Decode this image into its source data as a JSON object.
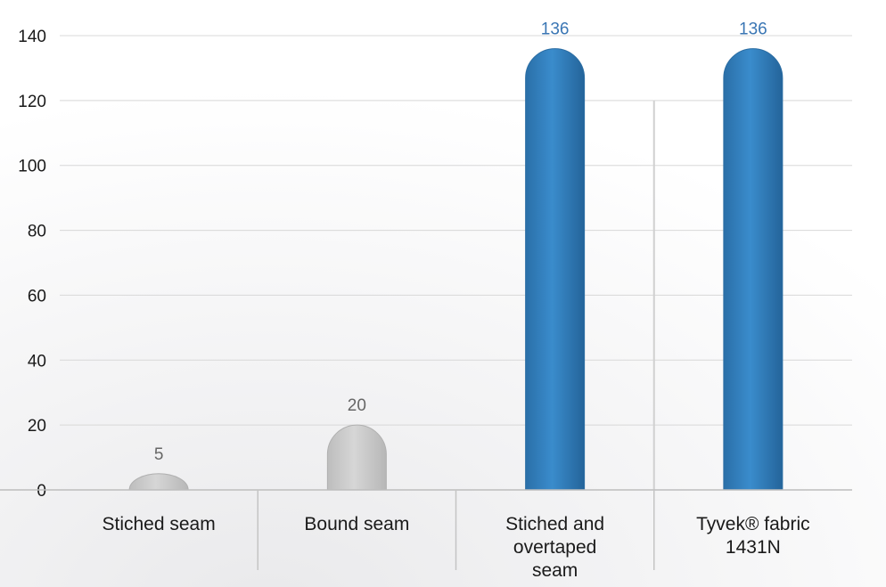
{
  "chart_data": {
    "type": "bar",
    "categories": [
      [
        "Stiched seam"
      ],
      [
        "Bound seam"
      ],
      [
        "Stiched and",
        "overtaped",
        "seam"
      ],
      [
        "Tyvek® fabric",
        "1431N"
      ]
    ],
    "values": [
      5,
      20,
      136,
      136
    ],
    "data_labels": [
      "5",
      "20",
      "136",
      "136"
    ],
    "yticks": [
      "0",
      "20",
      "40",
      "60",
      "80",
      "100",
      "120",
      "140"
    ],
    "ylim": [
      0,
      140
    ],
    "grid": true,
    "title": "",
    "xlabel": "",
    "ylabel": "",
    "colors": {
      "gray_bar": "#c9c9c9",
      "blue_bar": "#2e7db8",
      "gray_label": "#666666",
      "blue_label": "#3a76b4",
      "grid": "#d8d8d8"
    },
    "bar_color_keys": [
      "gray_bar",
      "gray_bar",
      "blue_bar",
      "blue_bar"
    ],
    "label_color_keys": [
      "gray_label",
      "gray_label",
      "blue_label",
      "blue_label"
    ]
  }
}
